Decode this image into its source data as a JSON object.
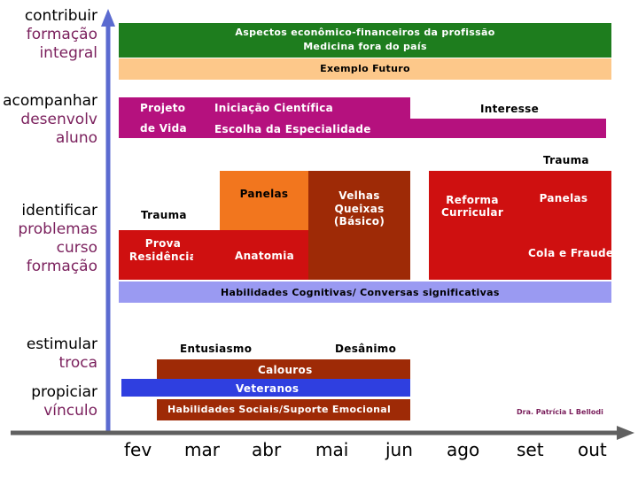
{
  "colors": {
    "green": "#1e7d1e",
    "peach": "#fdc88a",
    "magenta": "#b5117e",
    "orange": "#f2761e",
    "brown": "#9e2a06",
    "red": "#cf1010",
    "blue": "#2f3fe0",
    "lavender": "#9a9af2",
    "axis": "#5b6bd0",
    "label_purple": "#7a1f5c"
  },
  "row_labels": {
    "contribuir": [
      "contribuir",
      "formação",
      "integral"
    ],
    "acompanhar": [
      "acompanhar",
      "desenvolv",
      "aluno"
    ],
    "identificar": [
      "identificar",
      "problemas",
      "curso",
      "formação"
    ],
    "estimular": [
      "estimular",
      "troca"
    ],
    "propiciar": [
      "propiciar",
      "vínculo"
    ]
  },
  "bars": {
    "aspectos_line1": "Aspectos econômico-financeiros da profissão",
    "aspectos_line2": "Medicina fora do país",
    "exemplo_futuro": "Exemplo Futuro",
    "projeto": "Projeto",
    "de_vida": "de Vida",
    "iniciacao": "Iniciação Científica",
    "interesse": "Interesse",
    "escolha": "Escolha da Especialidade",
    "trauma_right": "Trauma",
    "panelas_center": "Panelas",
    "velhas_line1": "Velhas",
    "velhas_line2": "Queixas",
    "velhas_line3": "(Básico)",
    "reforma_line1": "Reforma",
    "reforma_line2": "Curricular",
    "panelas_right": "Panelas",
    "trauma_left": "Trauma",
    "prova_line1": "Prova",
    "prova_line2": "Residência",
    "anatomia": "Anatomia",
    "cola": "Cola e Fraude",
    "habilidades_cognitivas": "Habilidades Cognitivas/ Conversas significativas",
    "entusiasmo": "Entusiasmo",
    "desanimo": "Desânimo",
    "calouros": "Calouros",
    "veteranos": "Veteranos",
    "habilidades_sociais": "Habilidades Sociais/Suporte Emocional"
  },
  "author": "Dra. Patrícia L Bellodi",
  "months": [
    "fev",
    "mar",
    "abr",
    "mai",
    "jun",
    "ago",
    "set",
    "out"
  ]
}
